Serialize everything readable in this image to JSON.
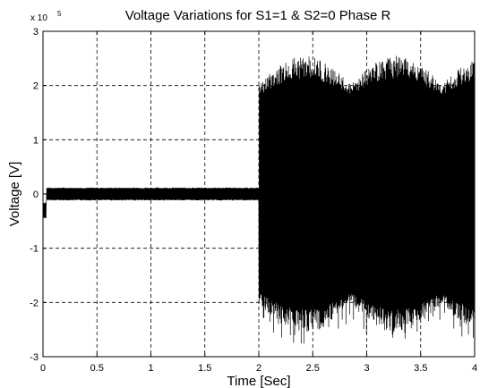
{
  "chart_data": {
    "type": "line",
    "title": "Voltage Variations for   S1=1 & S2=0     Phase R",
    "xlabel": "Time [Sec]",
    "ylabel": "Voltage [V]",
    "exponent_label": "x 10",
    "exponent_value": "5",
    "xlim": [
      0,
      4
    ],
    "ylim": [
      -3,
      3
    ],
    "y_scale_factor": 100000,
    "grid": true,
    "x_ticks": [
      "0",
      "0.5",
      "1",
      "1.5",
      "2",
      "2.5",
      "3",
      "3.5",
      "4"
    ],
    "y_ticks": [
      "3",
      "2",
      "1",
      "0",
      "-1",
      "-2",
      "-3"
    ],
    "series": [
      {
        "color": "#000000",
        "segments": [
          {
            "t_start": 0.0,
            "t_end": 0.03,
            "center": -0.3,
            "amplitude": 0.15
          },
          {
            "t_start": 0.03,
            "t_end": 2.0,
            "center": 0.0,
            "amplitude": 0.12
          },
          {
            "t_start": 2.0,
            "t_end": 4.0,
            "center": 0.0,
            "amplitude_max": 2.55,
            "amplitude_min": 1.5,
            "peak_min": -2.85
          }
        ]
      }
    ]
  }
}
